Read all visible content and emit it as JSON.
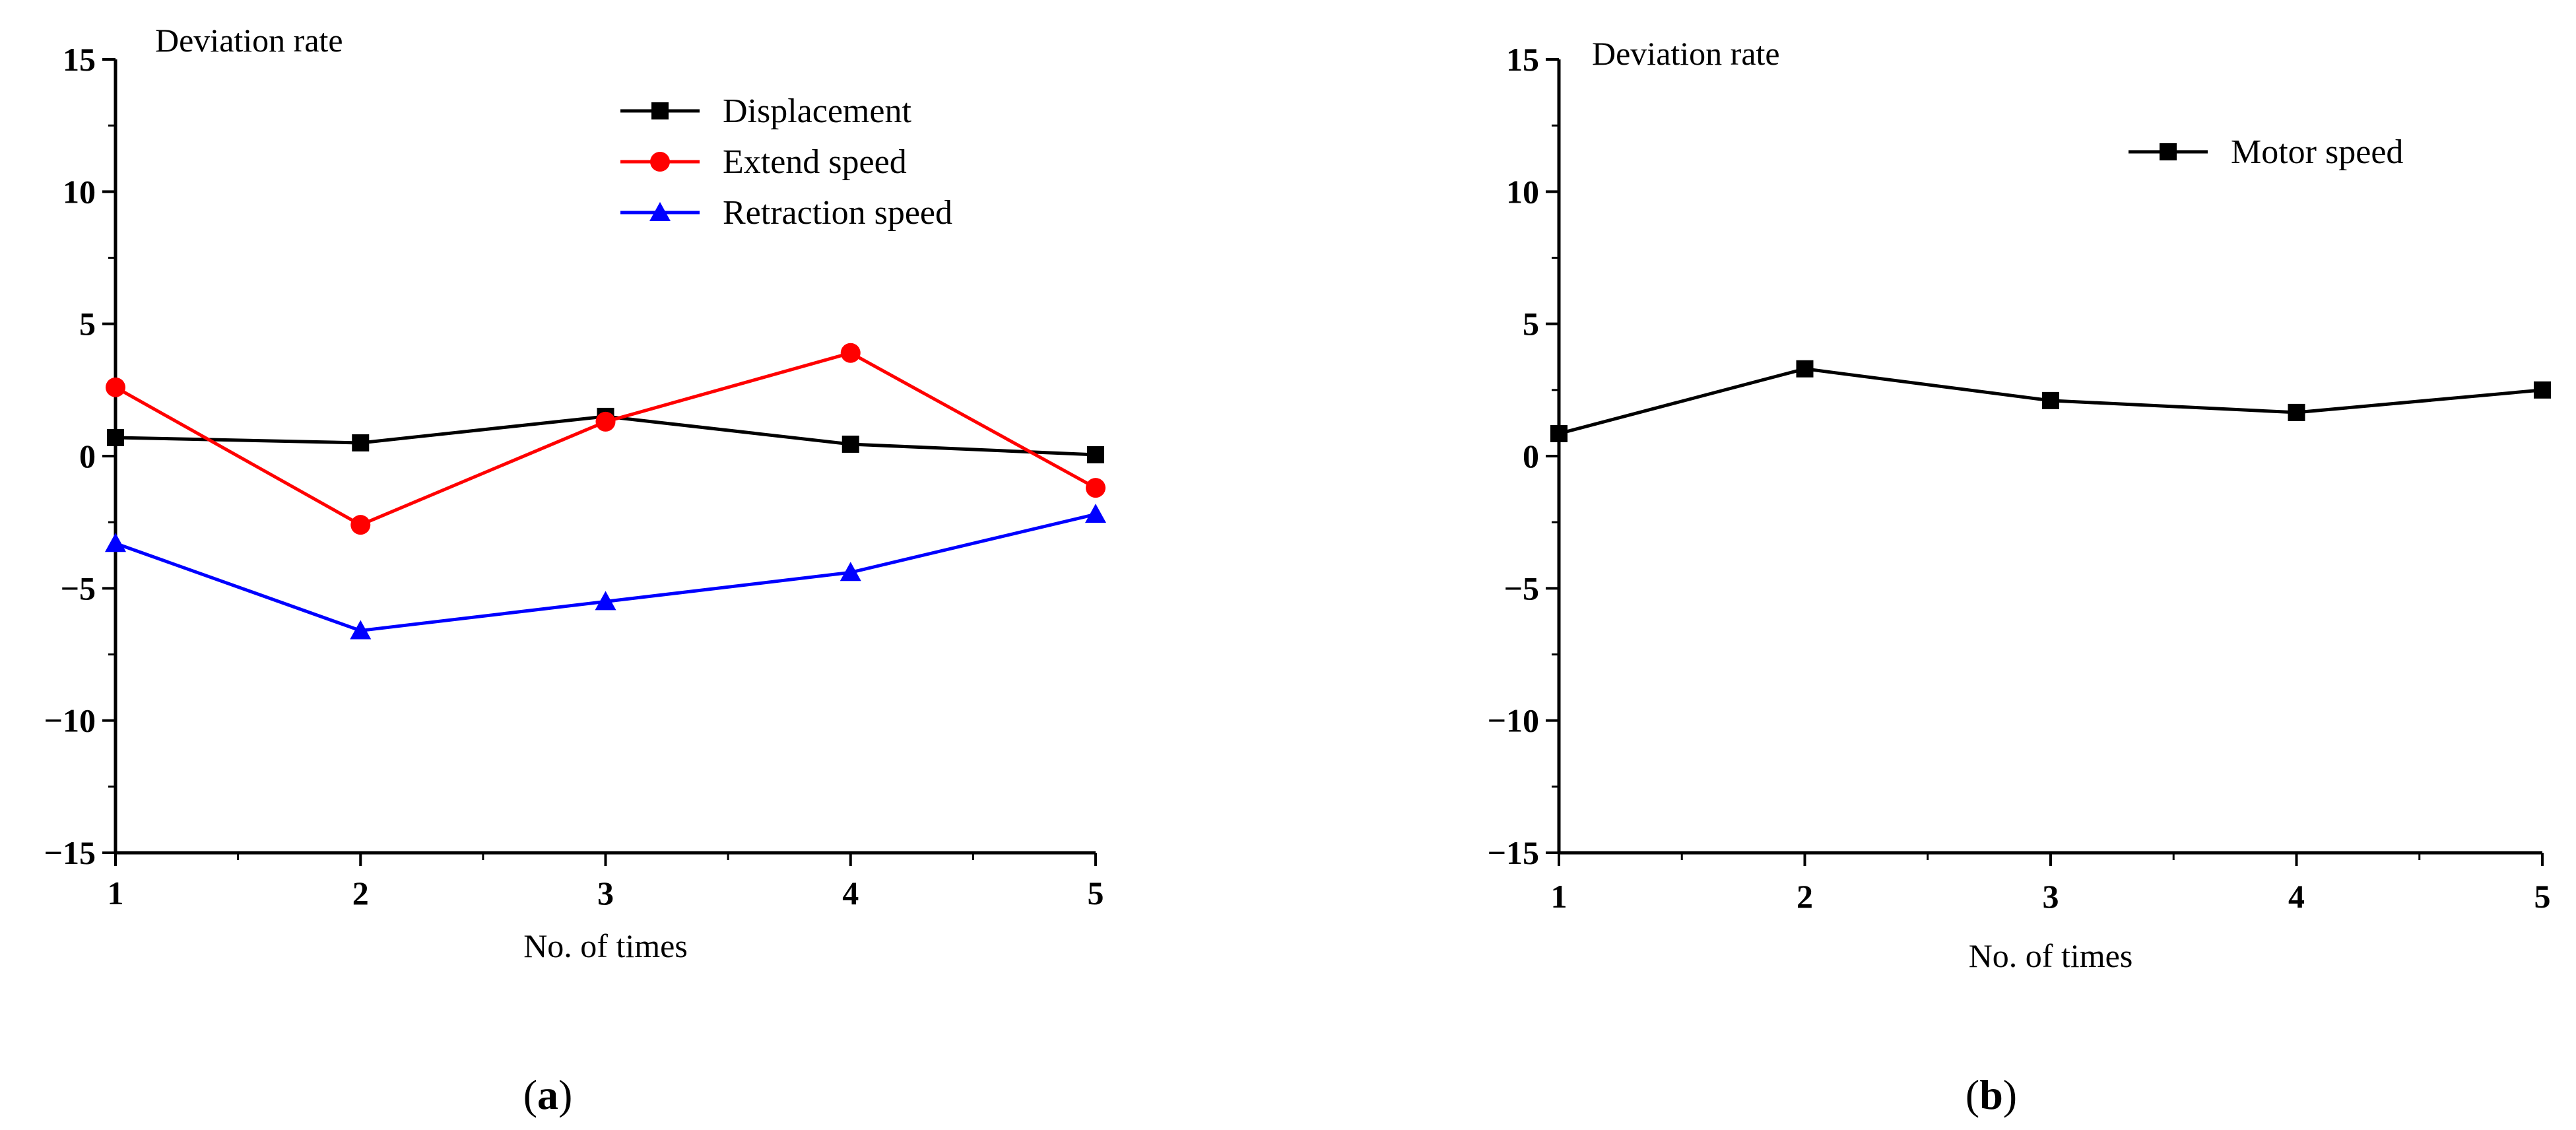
{
  "chart_data": [
    {
      "type": "line",
      "panel": "a",
      "title": "",
      "ylabel": "Deviation rate",
      "xlabel": "No. of times",
      "x": [
        1,
        2,
        3,
        4,
        5
      ],
      "xlim": [
        1,
        5
      ],
      "ylim": [
        -15,
        15
      ],
      "xticks": [
        "1",
        "2",
        "3",
        "4",
        "5"
      ],
      "yticks": [
        -15,
        -10,
        -5,
        0,
        5,
        10,
        15
      ],
      "ytick_labels": [
        "−15",
        "−10",
        "−5",
        "0",
        "5",
        "10",
        "15"
      ],
      "grid": false,
      "legend_position": "top-right",
      "series": [
        {
          "name": "Displacement",
          "color": "#000000",
          "marker": "square",
          "values": [
            0.7,
            0.5,
            1.5,
            0.45,
            0.05
          ]
        },
        {
          "name": "Extend speed",
          "color": "#ff0000",
          "marker": "circle",
          "values": [
            2.6,
            -2.6,
            1.3,
            3.9,
            -1.2
          ]
        },
        {
          "name": "Retraction speed",
          "color": "#0000ff",
          "marker": "triangle",
          "values": [
            -3.3,
            -6.6,
            -5.5,
            -4.4,
            -2.2
          ]
        }
      ]
    },
    {
      "type": "line",
      "panel": "b",
      "title": "",
      "ylabel": "Deviation rate",
      "xlabel": "No. of times",
      "x": [
        1,
        2,
        3,
        4,
        5
      ],
      "xlim": [
        1,
        5
      ],
      "ylim": [
        -15,
        15
      ],
      "xticks": [
        "1",
        "2",
        "3",
        "4",
        "5"
      ],
      "yticks": [
        -15,
        -10,
        -5,
        0,
        5,
        10,
        15
      ],
      "ytick_labels": [
        "−15",
        "−10",
        "−5",
        "0",
        "5",
        "10",
        "15"
      ],
      "grid": false,
      "legend_position": "top-right",
      "series": [
        {
          "name": "Motor speed",
          "color": "#000000",
          "marker": "square",
          "values": [
            0.85,
            3.3,
            2.1,
            1.65,
            2.5
          ]
        }
      ]
    }
  ],
  "captions": [
    {
      "open": "(",
      "letter": "a",
      "close": ")"
    },
    {
      "open": "(",
      "letter": "b",
      "close": ")"
    }
  ]
}
